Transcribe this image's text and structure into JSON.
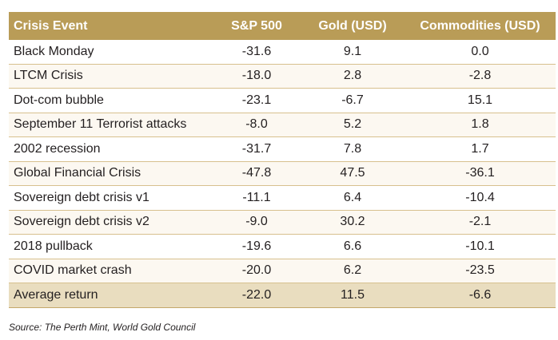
{
  "table": {
    "headers": [
      "Crisis Event",
      "S&P 500",
      "Gold (USD)",
      "Commodities (USD)"
    ],
    "rows": [
      {
        "event": "Black  Monday",
        "sp500": "-31.6",
        "gold": "9.1",
        "commodities": "0.0"
      },
      {
        "event": "LTCM Crisis",
        "sp500": "-18.0",
        "gold": "2.8",
        "commodities": "-2.8"
      },
      {
        "event": "Dot-com bubble",
        "sp500": "-23.1",
        "gold": "-6.7",
        "commodities": "15.1"
      },
      {
        "event": "September 11 Terrorist attacks",
        "sp500": "-8.0",
        "gold": "5.2",
        "commodities": "1.8"
      },
      {
        "event": "2002 recession",
        "sp500": "-31.7",
        "gold": "7.8",
        "commodities": "1.7"
      },
      {
        "event": "Global Financial Crisis",
        "sp500": "-47.8",
        "gold": "47.5",
        "commodities": "-36.1"
      },
      {
        "event": "Sovereign debt crisis v1",
        "sp500": "-11.1",
        "gold": "6.4",
        "commodities": "-10.4"
      },
      {
        "event": "Sovereign debt crisis v2",
        "sp500": "-9.0",
        "gold": "30.2",
        "commodities": "-2.1"
      },
      {
        "event": "2018 pullback",
        "sp500": "-19.6",
        "gold": "6.6",
        "commodities": "-10.1"
      },
      {
        "event": "COVID market crash",
        "sp500": "-20.0",
        "gold": "6.2",
        "commodities": "-23.5"
      }
    ],
    "average": {
      "event": "Average return",
      "sp500": "-22.0",
      "gold": "11.5",
      "commodities": "-6.6"
    }
  },
  "source": "Source: The Perth Mint, World Gold Council",
  "colors": {
    "header": "#b99c57",
    "average_row": "#e9ddbf",
    "stripe": "#fcf8f1"
  }
}
